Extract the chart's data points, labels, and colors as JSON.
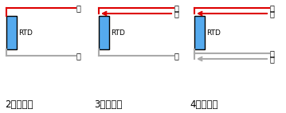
{
  "bg_color": "#ffffff",
  "rtd_color": "#55aaee",
  "rtd_border": "#000000",
  "red_color": "#dd0000",
  "gray_color": "#aaaaaa",
  "text_color": "#000000",
  "label_red": "红",
  "label_white": "白",
  "labels": [
    "2线连连接",
    "3线连连接",
    "4线连连接"
  ],
  "rtd_label": "RTD",
  "font_size_label": 8.5,
  "font_size_rtd": 6.5,
  "font_size_wire": 7
}
